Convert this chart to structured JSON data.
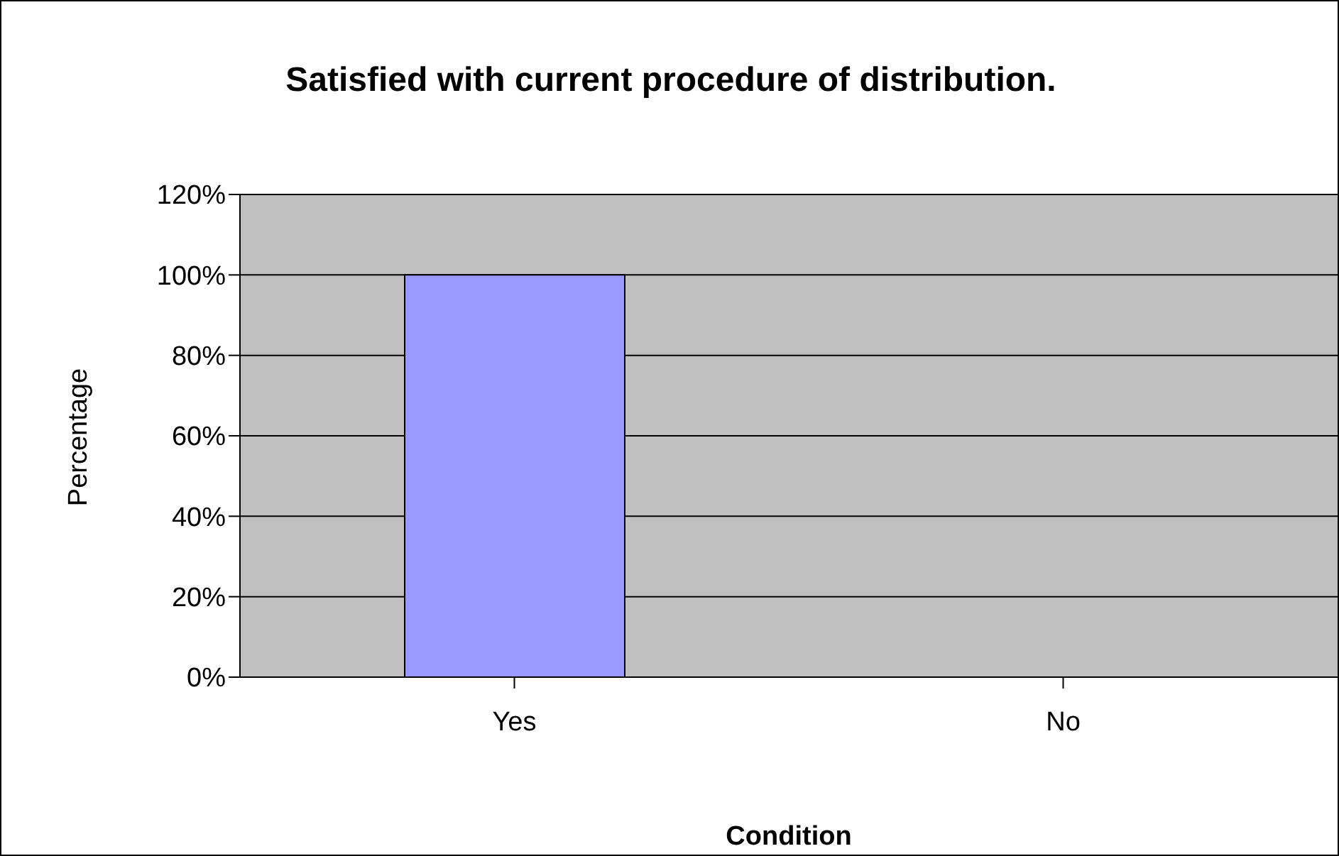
{
  "chart_data": {
    "type": "bar",
    "title": "Satisfied with current procedure of distribution.",
    "xlabel": "Condition",
    "ylabel": "Percentage",
    "categories": [
      "Yes",
      "No"
    ],
    "values": [
      100,
      0
    ],
    "color": "#9999ff",
    "ylim": [
      0,
      120
    ],
    "yticks": [
      {
        "value": 0,
        "label": "0%"
      },
      {
        "value": 20,
        "label": "20%"
      },
      {
        "value": 40,
        "label": "40%"
      },
      {
        "value": 60,
        "label": "60%"
      },
      {
        "value": 80,
        "label": "80%"
      },
      {
        "value": 100,
        "label": "100%"
      },
      {
        "value": 120,
        "label": "120%"
      }
    ],
    "grid": "y"
  }
}
